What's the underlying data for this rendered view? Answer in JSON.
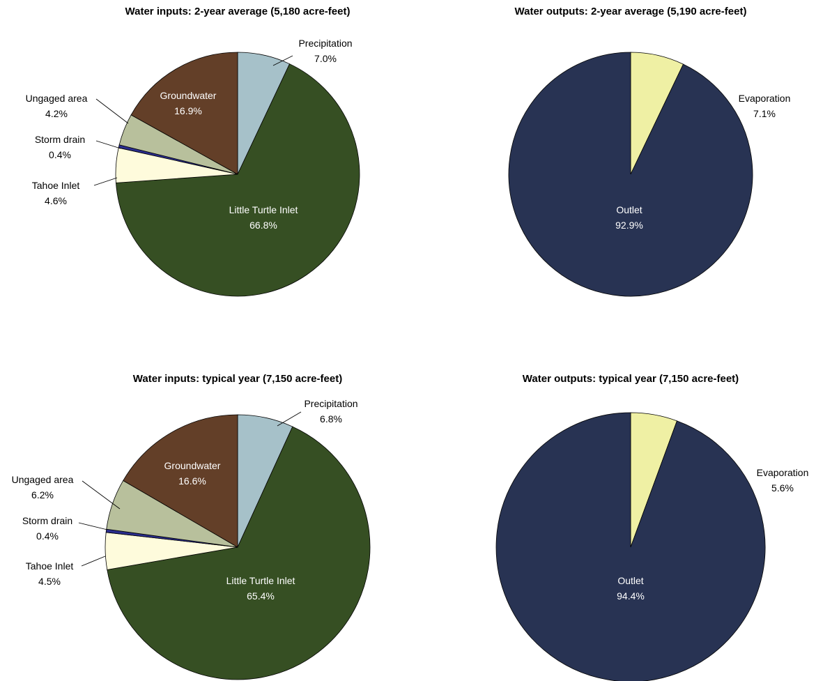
{
  "chart_data": [
    {
      "type": "pie",
      "title": "Water inputs: 2-year average (5,180 acre-feet)",
      "slices": [
        {
          "label": "Precipitation",
          "value_label": "7.0%",
          "value": 7.0,
          "color": "#a6c1c9"
        },
        {
          "label": "Little Turtle Inlet",
          "value_label": "66.8%",
          "value": 66.8,
          "color": "#364f23"
        },
        {
          "label": "Tahoe Inlet",
          "value_label": "4.6%",
          "value": 4.6,
          "color": "#fefbdc"
        },
        {
          "label": "Storm drain",
          "value_label": "0.4%",
          "value": 0.4,
          "color": "#2a2d8c"
        },
        {
          "label": "Ungaged area",
          "value_label": "4.2%",
          "value": 4.2,
          "color": "#b8c09c"
        },
        {
          "label": "Groundwater",
          "value_label": "16.9%",
          "value": 16.9,
          "color": "#633f28"
        }
      ]
    },
    {
      "type": "pie",
      "title": "Water outputs: 2-year average (5,190 acre-feet)",
      "slices": [
        {
          "label": "Evaporation",
          "value_label": "7.1%",
          "value": 7.1,
          "color": "#eff0a4"
        },
        {
          "label": "Outlet",
          "value_label": "92.9%",
          "value": 92.9,
          "color": "#283353"
        }
      ]
    },
    {
      "type": "pie",
      "title": "Water inputs: typical year (7,150 acre-feet)",
      "slices": [
        {
          "label": "Precipitation",
          "value_label": "6.8%",
          "value": 6.8,
          "color": "#a6c1c9"
        },
        {
          "label": "Little Turtle Inlet",
          "value_label": "65.4%",
          "value": 65.4,
          "color": "#364f23"
        },
        {
          "label": "Tahoe Inlet",
          "value_label": "4.5%",
          "value": 4.5,
          "color": "#fefbdc"
        },
        {
          "label": "Storm drain",
          "value_label": "0.4%",
          "value": 0.4,
          "color": "#2a2d8c"
        },
        {
          "label": "Ungaged area",
          "value_label": "6.2%",
          "value": 6.2,
          "color": "#b8c09c"
        },
        {
          "label": "Groundwater",
          "value_label": "16.6%",
          "value": 16.6,
          "color": "#633f28"
        }
      ]
    },
    {
      "type": "pie",
      "title": "Water outputs: typical year (7,150 acre-feet)",
      "slices": [
        {
          "label": "Evaporation",
          "value_label": "5.6%",
          "value": 5.6,
          "color": "#eff0a4"
        },
        {
          "label": "Outlet",
          "value_label": "94.4%",
          "value": 94.4,
          "color": "#283353"
        }
      ]
    }
  ]
}
